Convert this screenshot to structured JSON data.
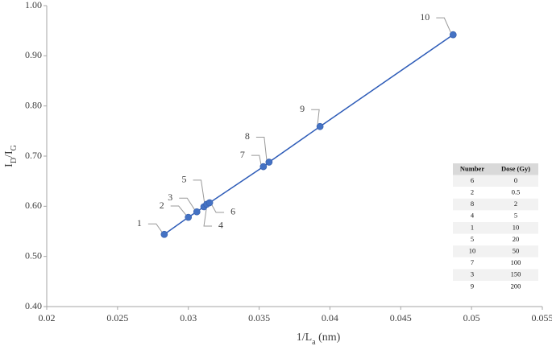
{
  "chart_data": {
    "type": "scatter",
    "ylabel_parts": [
      "I",
      "D",
      "/I",
      "G"
    ],
    "xlabel_parts": [
      "1/L",
      "a",
      " (nm)"
    ],
    "xlim": [
      0.02,
      0.055
    ],
    "xticks": [
      0.02,
      0.025,
      0.03,
      0.035,
      0.04,
      0.045,
      0.05,
      0.055
    ],
    "ylim": [
      0.4,
      1.0
    ],
    "yticks": [
      {
        "value": 0.4,
        "label": "0.40"
      },
      {
        "value": 0.5,
        "label": "0.50"
      },
      {
        "value": 0.6,
        "label": "0.60"
      },
      {
        "value": 0.7,
        "label": "0.70"
      },
      {
        "value": 0.8,
        "label": "0.80"
      },
      {
        "value": 0.9,
        "label": "0.90"
      },
      {
        "value": 1.0,
        "label": "1.00"
      }
    ],
    "grid": false,
    "connect_line": true,
    "line_color": "#2e5cb8",
    "series": [
      {
        "color": "#4472c4",
        "point_labels": [
          "1",
          "2",
          "3",
          "4",
          "5",
          "6",
          "7",
          "8",
          "9",
          "10"
        ],
        "x": [
          0.0283,
          0.03,
          0.0306,
          0.0311,
          0.0313,
          0.0315,
          0.0353,
          0.0357,
          0.0393,
          0.0487
        ],
        "values": [
          0.544,
          0.578,
          0.589,
          0.599,
          0.604,
          0.607,
          0.679,
          0.688,
          0.759,
          0.942
        ]
      }
    ]
  },
  "table": {
    "header": [
      "Number",
      "Dose (Gy)"
    ],
    "rows": [
      [
        "6",
        "0"
      ],
      [
        "2",
        "0.5"
      ],
      [
        "8",
        "2"
      ],
      [
        "4",
        "5"
      ],
      [
        "1",
        "10"
      ],
      [
        "5",
        "20"
      ],
      [
        "10",
        "50"
      ],
      [
        "7",
        "100"
      ],
      [
        "3",
        "150"
      ],
      [
        "9",
        "200"
      ]
    ]
  }
}
